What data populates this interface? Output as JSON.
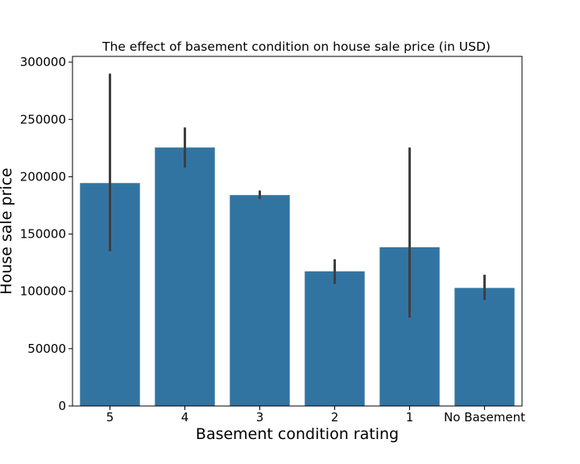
{
  "chart_data": {
    "type": "bar",
    "title": "The effect of basement condition on house sale price (in USD)",
    "xlabel": "Basement condition rating",
    "ylabel": "House sale price",
    "categories": [
      "5",
      "4",
      "3",
      "2",
      "1",
      "No Basement"
    ],
    "values": [
      194500,
      225500,
      184000,
      117500,
      138500,
      103000
    ],
    "error_low": [
      135000,
      208000,
      180500,
      106500,
      77000,
      92500
    ],
    "error_high": [
      290000,
      243000,
      188000,
      128000,
      225500,
      114500
    ],
    "ylim": [
      0,
      305000
    ],
    "yticks": [
      0,
      50000,
      100000,
      150000,
      200000,
      250000,
      300000
    ],
    "grid": false,
    "colors": {
      "bar": "#3274a1",
      "error_bar": "#3f3f3f",
      "axis": "#000000"
    }
  }
}
